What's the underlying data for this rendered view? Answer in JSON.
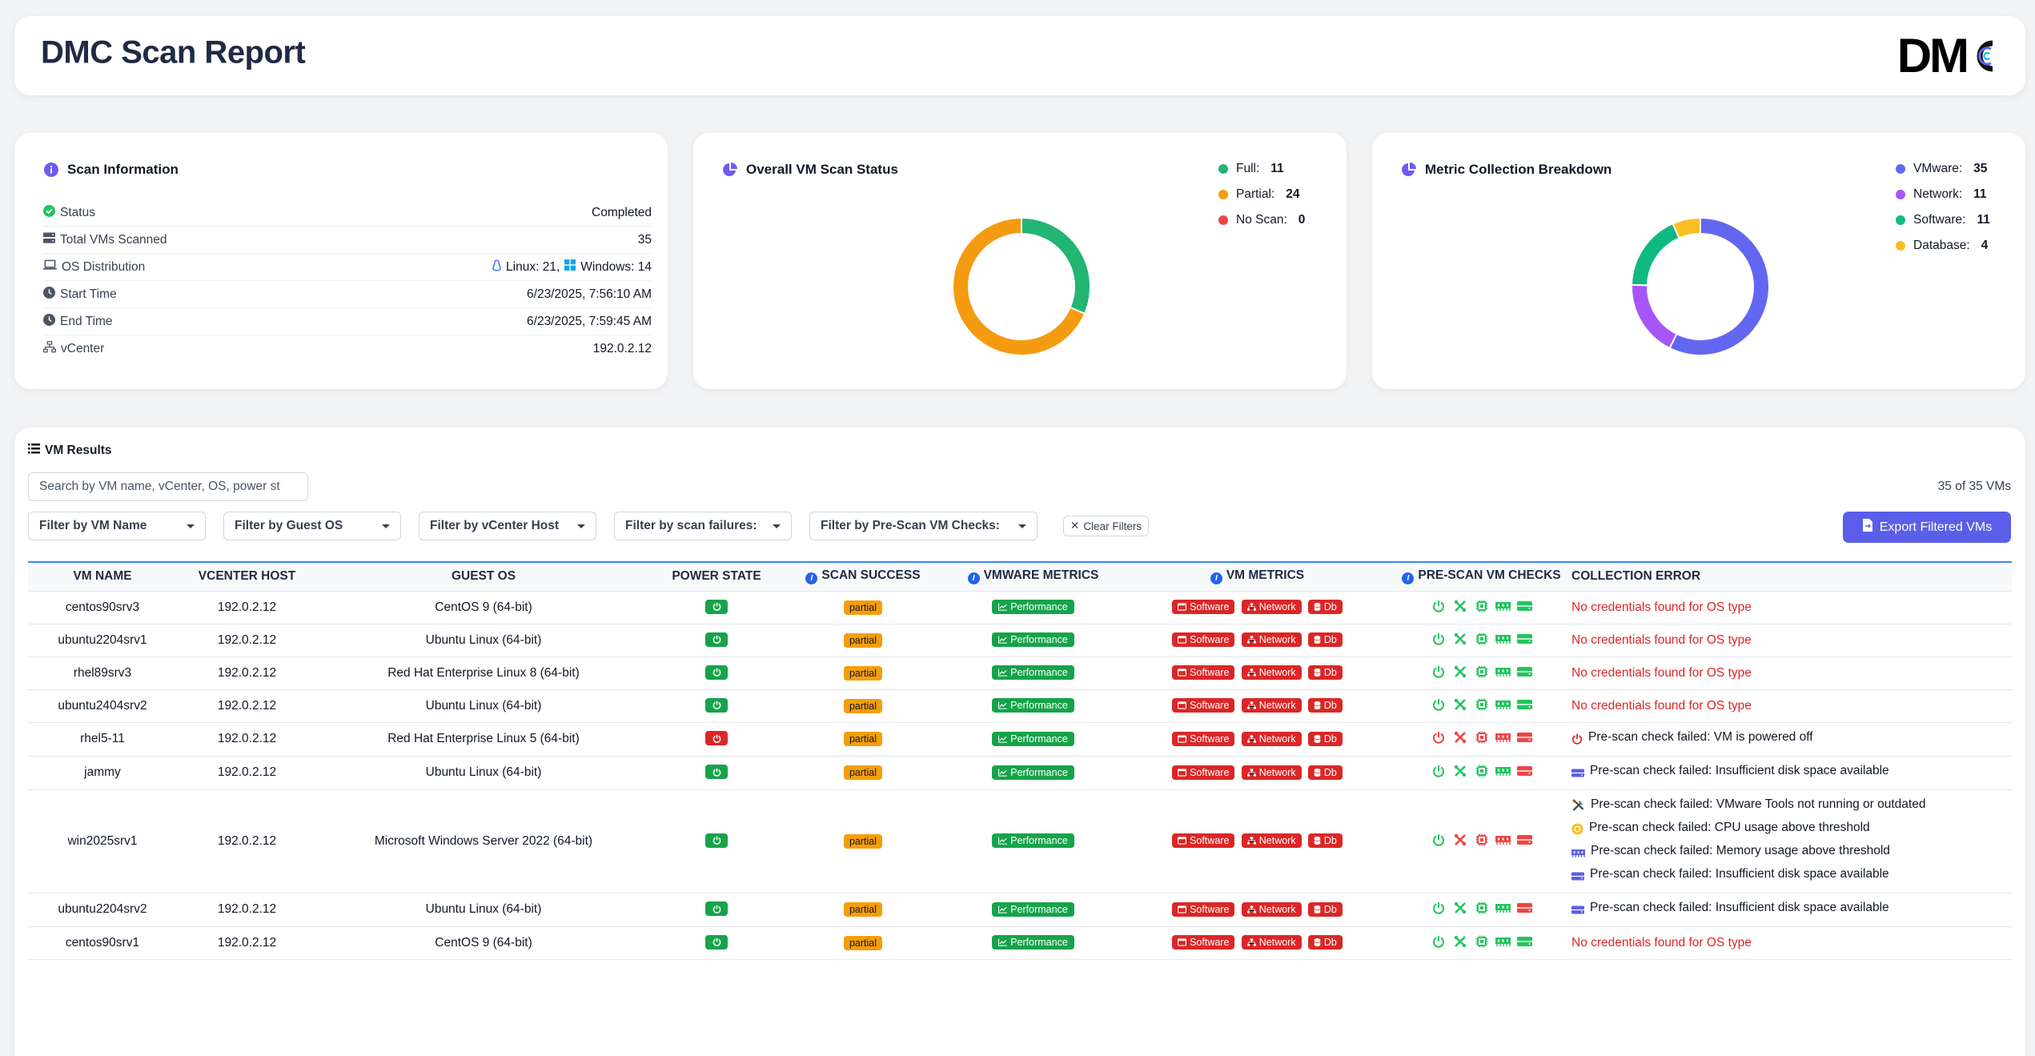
{
  "header": {
    "title": "DMC Scan Report",
    "logo_text": "DM"
  },
  "scan_info": {
    "title": "Scan Information",
    "rows": [
      {
        "label": "Status",
        "value": "Completed",
        "icon": "check-circle-icon"
      },
      {
        "label": "Total VMs Scanned",
        "value": "35",
        "icon": "server-icon"
      },
      {
        "label": "OS Distribution",
        "value_linux": "Linux: 21,",
        "value_windows": "Windows: 14",
        "icon": "laptop-icon"
      },
      {
        "label": "Start Time",
        "value": "6/23/2025, 7:56:10 AM",
        "icon": "clock-icon"
      },
      {
        "label": "End Time",
        "value": "6/23/2025, 7:59:45 AM",
        "icon": "clock-icon"
      },
      {
        "label": "vCenter",
        "value": "192.0.2.12",
        "icon": "sitemap-icon"
      }
    ]
  },
  "status_chart": {
    "title": "Overall VM Scan Status",
    "legend": [
      {
        "label": "Full:",
        "value": "11",
        "color": "#22b573"
      },
      {
        "label": "Partial:",
        "value": "24",
        "color": "#f59b12"
      },
      {
        "label": "No Scan:",
        "value": "0",
        "color": "#ef4444"
      }
    ]
  },
  "metric_chart": {
    "title": "Metric Collection Breakdown",
    "legend": [
      {
        "label": "VMware:",
        "value": "35",
        "color": "#6366f1"
      },
      {
        "label": "Network:",
        "value": "11",
        "color": "#a855f7"
      },
      {
        "label": "Software:",
        "value": "11",
        "color": "#10b981"
      },
      {
        "label": "Database:",
        "value": "4",
        "color": "#fbbf24"
      }
    ]
  },
  "chart_data": [
    {
      "type": "pie",
      "categories": [
        "Full",
        "Partial",
        "No Scan"
      ],
      "values": [
        11,
        24,
        0
      ],
      "title": "Overall VM Scan Status"
    },
    {
      "type": "pie",
      "categories": [
        "VMware",
        "Network",
        "Software",
        "Database"
      ],
      "values": [
        35,
        11,
        11,
        4
      ],
      "title": "Metric Collection Breakdown"
    }
  ],
  "results": {
    "title": "VM Results",
    "search_placeholder": "Search by VM name, vCenter, OS, power st",
    "count": "35 of 35 VMs",
    "filters": [
      "Filter by VM Name",
      "Filter by Guest OS",
      "Filter by vCenter Host",
      "Filter by scan failures:",
      "Filter by Pre-Scan VM Checks:"
    ],
    "clear_label": "Clear Filters",
    "export_label": "Export Filtered VMs",
    "columns": [
      "VM Name",
      "vCenter Host",
      "Guest OS",
      "Power State",
      "Scan Success",
      "VMware Metrics",
      "VM Metrics",
      "Pre-Scan VM Checks",
      "Collection Error"
    ],
    "badges": {
      "partial": "partial",
      "performance": "Performance",
      "software": "Software",
      "network": "Network",
      "db": "Db"
    },
    "rows": [
      {
        "name": "centos90srv3",
        "host": "192.0.2.12",
        "os": "CentOS 9 (64-bit)",
        "power": "on",
        "checks": [
          "g",
          "g",
          "g",
          "g",
          "g"
        ],
        "errors": [
          {
            "text": "No credentials found for OS type",
            "kind": "red"
          }
        ]
      },
      {
        "name": "ubuntu2204srv1",
        "host": "192.0.2.12",
        "os": "Ubuntu Linux (64-bit)",
        "power": "on",
        "checks": [
          "g",
          "g",
          "g",
          "g",
          "g"
        ],
        "errors": [
          {
            "text": "No credentials found for OS type",
            "kind": "red"
          }
        ]
      },
      {
        "name": "rhel89srv3",
        "host": "192.0.2.12",
        "os": "Red Hat Enterprise Linux 8 (64-bit)",
        "power": "on",
        "checks": [
          "g",
          "g",
          "g",
          "g",
          "g"
        ],
        "errors": [
          {
            "text": "No credentials found for OS type",
            "kind": "red"
          }
        ]
      },
      {
        "name": "ubuntu2404srv2",
        "host": "192.0.2.12",
        "os": "Ubuntu Linux (64-bit)",
        "power": "on",
        "checks": [
          "g",
          "g",
          "g",
          "g",
          "g"
        ],
        "errors": [
          {
            "text": "No credentials found for OS type",
            "kind": "red"
          }
        ]
      },
      {
        "name": "rhel5-11",
        "host": "192.0.2.12",
        "os": "Red Hat Enterprise Linux 5 (64-bit)",
        "power": "off",
        "checks": [
          "r",
          "r",
          "r",
          "r",
          "r"
        ],
        "errors": [
          {
            "text": "Pre-scan check failed: VM is powered off",
            "kind": "power"
          }
        ]
      },
      {
        "name": "jammy",
        "host": "192.0.2.12",
        "os": "Ubuntu Linux (64-bit)",
        "power": "on",
        "checks": [
          "g",
          "g",
          "g",
          "g",
          "r"
        ],
        "errors": [
          {
            "text": "Pre-scan check failed: Insufficient disk space available",
            "kind": "disk"
          }
        ]
      },
      {
        "name": "win2025srv1",
        "host": "192.0.2.12",
        "os": "Microsoft Windows Server 2022 (64-bit)",
        "power": "on",
        "checks": [
          "g",
          "r",
          "r",
          "r",
          "r"
        ],
        "errors": [
          {
            "text": "Pre-scan check failed: VMware Tools not running or outdated",
            "kind": "tools"
          },
          {
            "text": "Pre-scan check failed: CPU usage above threshold",
            "kind": "cpu"
          },
          {
            "text": "Pre-scan check failed: Memory usage above threshold",
            "kind": "mem"
          },
          {
            "text": "Pre-scan check failed: Insufficient disk space available",
            "kind": "disk"
          }
        ]
      },
      {
        "name": "ubuntu2204srv2",
        "host": "192.0.2.12",
        "os": "Ubuntu Linux (64-bit)",
        "power": "on",
        "checks": [
          "g",
          "g",
          "g",
          "g",
          "r"
        ],
        "errors": [
          {
            "text": "Pre-scan check failed: Insufficient disk space available",
            "kind": "disk"
          }
        ]
      },
      {
        "name": "centos90srv1",
        "host": "192.0.2.12",
        "os": "CentOS 9 (64-bit)",
        "power": "on",
        "checks": [
          "g",
          "g",
          "g",
          "g",
          "g"
        ],
        "errors": [
          {
            "text": "No credentials found for OS type",
            "kind": "red"
          }
        ]
      }
    ]
  }
}
